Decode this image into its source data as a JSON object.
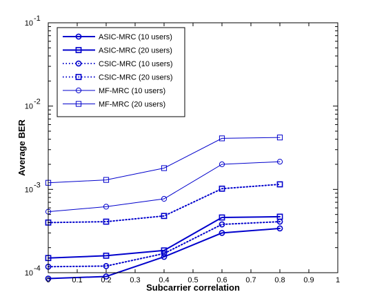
{
  "chart_data": {
    "type": "line",
    "title": "",
    "xlabel": "Subcarrier correlation",
    "ylabel": "Average BER",
    "xlim": [
      0,
      1
    ],
    "ylim": [
      0.0001,
      0.1
    ],
    "yscale": "log",
    "x_ticks": [
      "0",
      "0.1",
      "0.2",
      "0.3",
      "0.4",
      "0.5",
      "0.6",
      "0.7",
      "0.8",
      "0.9",
      "1"
    ],
    "y_ticks": [
      {
        "base": "10",
        "exp": "-4"
      },
      {
        "base": "10",
        "exp": "-3"
      },
      {
        "base": "10",
        "exp": "-2"
      },
      {
        "base": "10",
        "exp": "-1"
      }
    ],
    "grid": false,
    "legend_position": "top-left",
    "line_color": "#0000cc",
    "series": [
      {
        "name": "ASIC-MRC (10 users)",
        "marker": "circle",
        "line_style": "solid",
        "line_weight": "thick",
        "x": [
          0,
          0.2,
          0.4,
          0.6,
          0.8
        ],
        "values": [
          8.5e-05,
          9e-05,
          0.000155,
          0.0003,
          0.00034
        ]
      },
      {
        "name": "ASIC-MRC (20 users)",
        "marker": "square",
        "line_style": "solid",
        "line_weight": "thick",
        "x": [
          0,
          0.2,
          0.4,
          0.6,
          0.8
        ],
        "values": [
          0.00015,
          0.00016,
          0.000185,
          0.00046,
          0.00047
        ]
      },
      {
        "name": "CSIC-MRC (10 users)",
        "marker": "circle",
        "line_style": "dotted",
        "line_weight": "thick",
        "x": [
          0,
          0.2,
          0.4,
          0.6,
          0.8
        ],
        "values": [
          0.000118,
          0.00012,
          0.00017,
          0.00038,
          0.00041
        ]
      },
      {
        "name": "CSIC-MRC (20 users)",
        "marker": "square",
        "line_style": "dotted",
        "line_weight": "thick",
        "x": [
          0,
          0.2,
          0.4,
          0.6,
          0.8
        ],
        "values": [
          0.0004,
          0.00041,
          0.00048,
          0.00102,
          0.00115
        ]
      },
      {
        "name": "MF-MRC (10 users)",
        "marker": "circle",
        "line_style": "solid",
        "line_weight": "thin",
        "x": [
          0,
          0.2,
          0.4,
          0.6,
          0.8
        ],
        "values": [
          0.00054,
          0.00062,
          0.00077,
          0.002,
          0.00215
        ]
      },
      {
        "name": "MF-MRC (20 users)",
        "marker": "square",
        "line_style": "solid",
        "line_weight": "thin",
        "x": [
          0,
          0.2,
          0.4,
          0.6,
          0.8
        ],
        "values": [
          0.0012,
          0.0013,
          0.0018,
          0.0041,
          0.0042
        ]
      }
    ]
  }
}
